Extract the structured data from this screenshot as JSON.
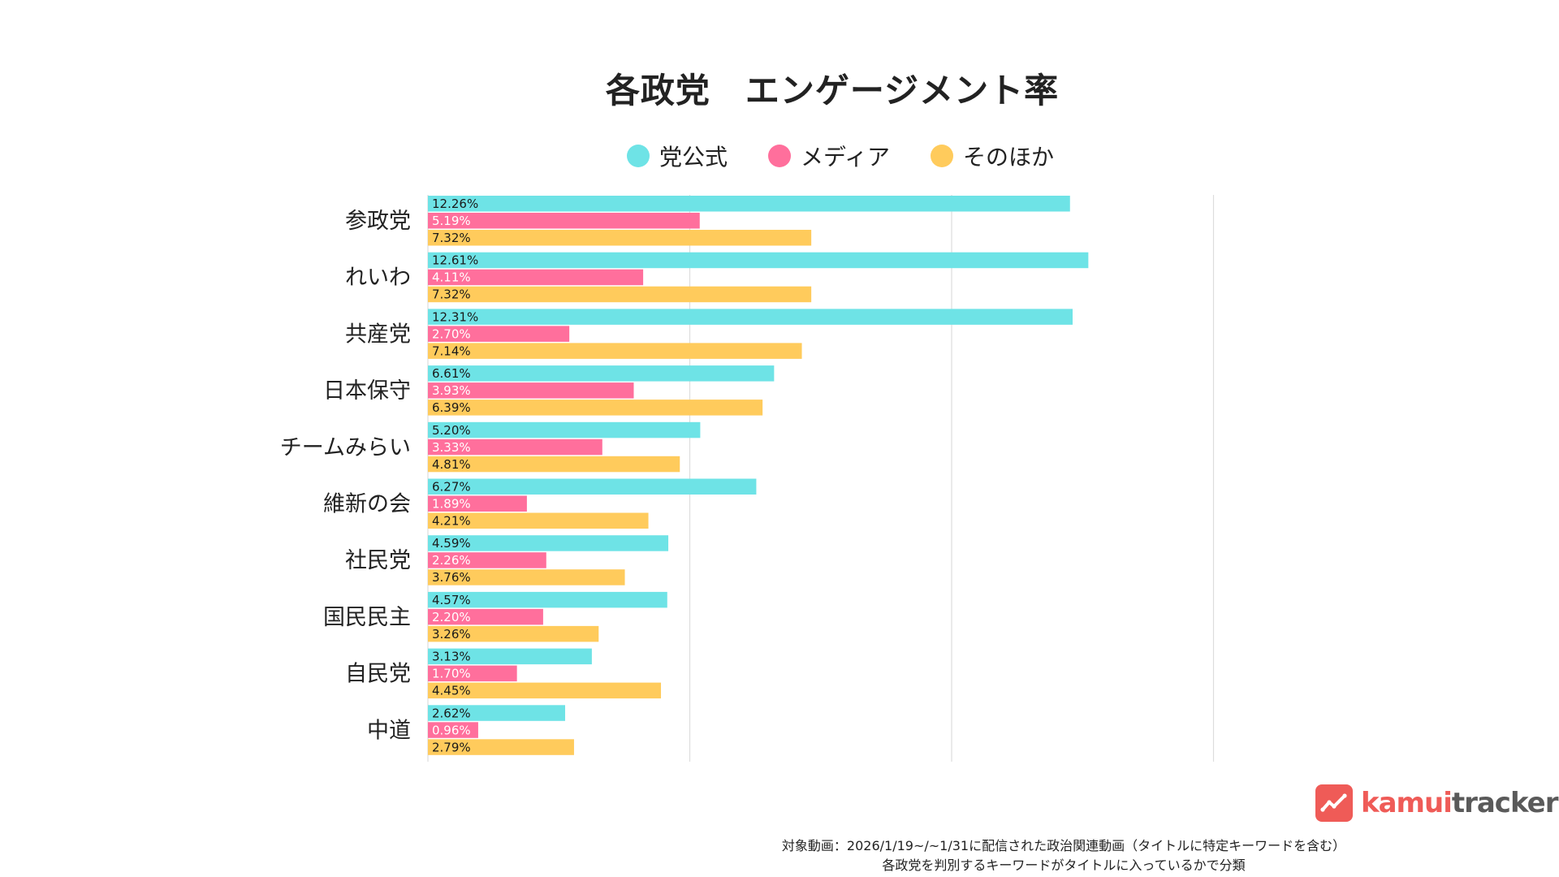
{
  "chart_data": {
    "type": "bar",
    "orientation": "horizontal",
    "title": "各政党　エンゲージメント率",
    "categories": [
      "参政党",
      "れいわ",
      "共産党",
      "日本保守",
      "チームみらい",
      "維新の会",
      "社民党",
      "国民民主",
      "自民党",
      "中道"
    ],
    "series": [
      {
        "name": "党公式",
        "color": "#6ee3e6",
        "values": [
          12.26,
          12.61,
          12.31,
          6.61,
          5.2,
          6.27,
          4.59,
          4.57,
          3.13,
          2.62
        ],
        "labels": [
          "12.26%",
          "12.61%",
          "12.31%",
          "6.61%",
          "5.20%",
          "6.27%",
          "4.59%",
          "4.57%",
          "3.13%",
          "2.62%"
        ]
      },
      {
        "name": "メディア",
        "color": "#ff6f9c",
        "values": [
          5.19,
          4.11,
          2.7,
          3.93,
          3.33,
          1.89,
          2.26,
          2.2,
          1.7,
          0.96
        ],
        "labels": [
          "5.19%",
          "4.11%",
          "2.70%",
          "3.93%",
          "3.33%",
          "1.89%",
          "2.26%",
          "2.20%",
          "1.70%",
          "0.96%"
        ]
      },
      {
        "name": "そのほか",
        "color": "#ffcb5c",
        "values": [
          7.32,
          7.32,
          7.14,
          6.39,
          4.81,
          4.21,
          3.76,
          3.26,
          4.45,
          2.79
        ],
        "labels": [
          "7.32%",
          "7.32%",
          "7.14%",
          "6.39%",
          "4.81%",
          "4.21%",
          "3.76%",
          "3.26%",
          "4.45%",
          "2.79%"
        ]
      }
    ],
    "xlim": [
      0,
      15
    ],
    "gridlines": [
      0,
      5,
      10,
      15
    ],
    "grid": true,
    "legend_position": "top"
  },
  "logo": {
    "kamui": "kamui",
    "tracker": "tracker"
  },
  "footnote": {
    "line1": "対象動画：2026/1/19~/~1/31に配信された政治関連動画（タイトルに特定キーワードを含む）",
    "line2": "各政党を判別するキーワードがタイトルに入っているかで分類"
  }
}
